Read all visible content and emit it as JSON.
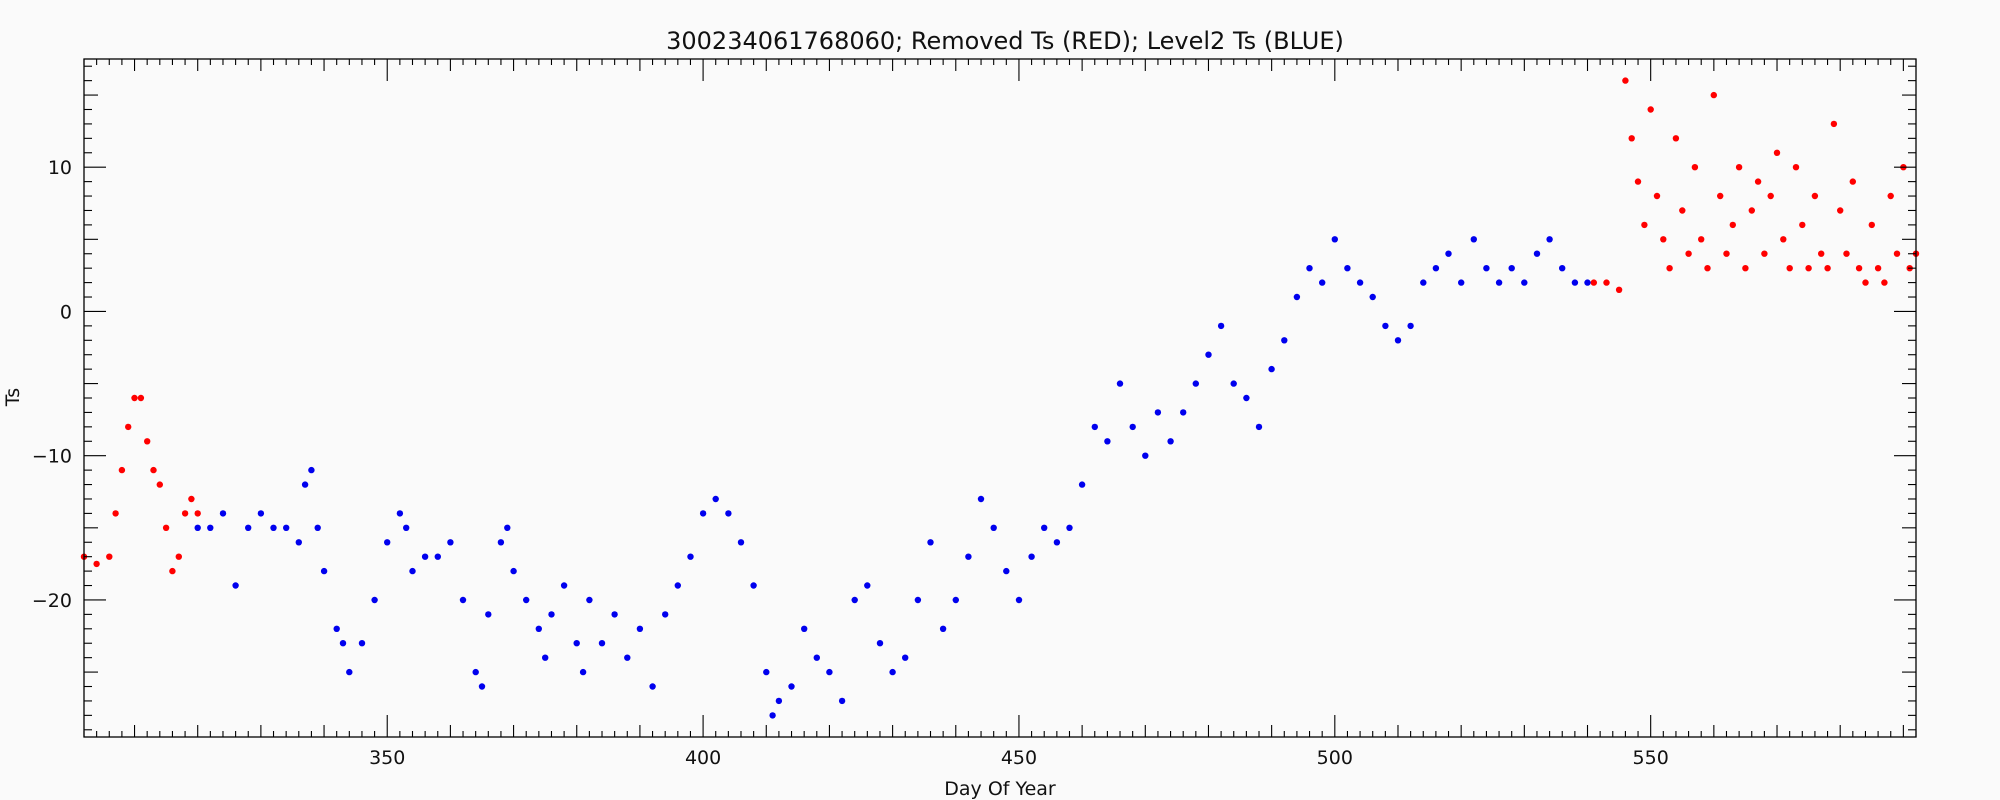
{
  "chart_data": {
    "type": "scatter",
    "title": "300234061768060; Removed Ts (RED); Level2 Ts (BLUE)",
    "xlabel": "Day Of Year",
    "ylabel": "Ts",
    "xlim": [
      302,
      592
    ],
    "ylim": [
      -29.5,
      17.5
    ],
    "x_ticks": [
      350,
      400,
      450,
      500,
      550
    ],
    "y_ticks": [
      -20,
      -10,
      0,
      10
    ],
    "grid": false,
    "legend": "none",
    "colors": {
      "removed": "#ff0000",
      "level2": "#0000ee",
      "axis": "#000000",
      "background": "#fafafa"
    },
    "series": [
      {
        "color": "red",
        "x": [
          302,
          304,
          306,
          307,
          308,
          309,
          310,
          311,
          312,
          313,
          314,
          315,
          316,
          317,
          318,
          319,
          320,
          541,
          543,
          545,
          546,
          547,
          548,
          549,
          550,
          551,
          552,
          553,
          554,
          555,
          556,
          557,
          558,
          559,
          560,
          561,
          562,
          563,
          564,
          565,
          566,
          567,
          568,
          569,
          570,
          571,
          572,
          573,
          574,
          575,
          576,
          577,
          578,
          579,
          580,
          581,
          582,
          583,
          584,
          585,
          586,
          587,
          588,
          589,
          590,
          591,
          592
        ],
        "y": [
          -17,
          -17.5,
          -17,
          -14,
          -11,
          -8,
          -6,
          -6,
          -9,
          -11,
          -12,
          -15,
          -18,
          -17,
          -14,
          -13,
          -14,
          2,
          2,
          1.5,
          16,
          12,
          9,
          6,
          14,
          8,
          5,
          3,
          12,
          7,
          4,
          10,
          5,
          3,
          15,
          8,
          4,
          6,
          10,
          3,
          7,
          9,
          4,
          8,
          11,
          5,
          3,
          10,
          6,
          3,
          8,
          4,
          3,
          13,
          7,
          4,
          9,
          3,
          2,
          6,
          3,
          2,
          8,
          4,
          10,
          3,
          4
        ]
      },
      {
        "color": "blue",
        "x": [
          320,
          322,
          324,
          326,
          328,
          330,
          332,
          334,
          336,
          337,
          338,
          339,
          340,
          342,
          343,
          344,
          346,
          348,
          350,
          352,
          353,
          354,
          356,
          358,
          360,
          362,
          364,
          365,
          366,
          368,
          369,
          370,
          372,
          374,
          375,
          376,
          378,
          380,
          381,
          382,
          384,
          386,
          388,
          390,
          392,
          394,
          396,
          398,
          400,
          402,
          404,
          406,
          408,
          410,
          411,
          412,
          414,
          416,
          418,
          420,
          422,
          424,
          426,
          428,
          430,
          432,
          434,
          436,
          438,
          440,
          442,
          444,
          446,
          448,
          450,
          452,
          454,
          456,
          458,
          460,
          462,
          464,
          466,
          468,
          470,
          472,
          474,
          476,
          478,
          480,
          482,
          484,
          486,
          488,
          490,
          492,
          494,
          496,
          498,
          500,
          502,
          504,
          506,
          508,
          510,
          512,
          514,
          516,
          518,
          520,
          522,
          524,
          526,
          528,
          530,
          532,
          534,
          536,
          538,
          540
        ],
        "y": [
          -15,
          -15,
          -14,
          -19,
          -15,
          -14,
          -15,
          -15,
          -16,
          -12,
          -11,
          -15,
          -18,
          -22,
          -23,
          -25,
          -23,
          -20,
          -16,
          -14,
          -15,
          -18,
          -17,
          -17,
          -16,
          -20,
          -25,
          -26,
          -21,
          -16,
          -15,
          -18,
          -20,
          -22,
          -24,
          -21,
          -19,
          -23,
          -25,
          -20,
          -23,
          -21,
          -24,
          -22,
          -26,
          -21,
          -19,
          -17,
          -14,
          -13,
          -14,
          -16,
          -19,
          -25,
          -28,
          -27,
          -26,
          -22,
          -24,
          -25,
          -27,
          -20,
          -19,
          -23,
          -25,
          -24,
          -20,
          -16,
          -22,
          -20,
          -17,
          -13,
          -15,
          -18,
          -20,
          -17,
          -15,
          -16,
          -15,
          -12,
          -8,
          -9,
          -5,
          -8,
          -10,
          -7,
          -9,
          -7,
          -5,
          -3,
          -1,
          -5,
          -6,
          -8,
          -4,
          -2,
          1,
          3,
          2,
          5,
          3,
          2,
          1,
          -1,
          -2,
          -1,
          2,
          3,
          4,
          2,
          5,
          3,
          2,
          3,
          2,
          4,
          5,
          3,
          2,
          2
        ]
      }
    ]
  }
}
